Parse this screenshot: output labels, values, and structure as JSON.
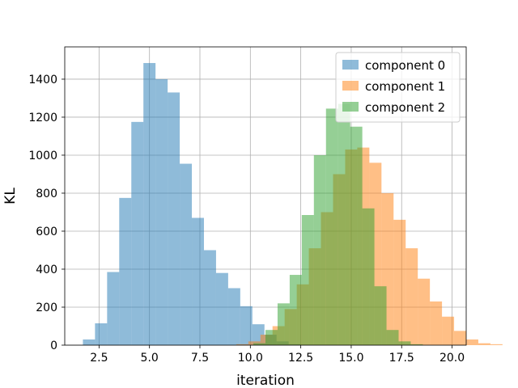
{
  "chart_data": {
    "type": "histogram",
    "title": "",
    "xlabel": "iteration",
    "ylabel": "KL",
    "xlim": [
      0.8,
      20.7
    ],
    "ylim": [
      0,
      1570
    ],
    "xticks": [
      2.5,
      5.0,
      7.5,
      10.0,
      12.5,
      15.0,
      17.5,
      20.0
    ],
    "xtick_labels": [
      "2.5",
      "5.0",
      "7.5",
      "10.0",
      "12.5",
      "15.0",
      "17.5",
      "20.0"
    ],
    "yticks": [
      0,
      200,
      400,
      600,
      800,
      1000,
      1200,
      1400
    ],
    "ytick_labels": [
      "0",
      "200",
      "400",
      "600",
      "800",
      "1000",
      "1200",
      "1400"
    ],
    "grid": true,
    "legend_position": "top-right",
    "bin_width": 0.6,
    "series": [
      {
        "name": "component 0",
        "color": "#1f77b4",
        "bin_start": 1.7,
        "counts": [
          30,
          115,
          385,
          775,
          1175,
          1485,
          1400,
          1330,
          955,
          670,
          500,
          380,
          300,
          205,
          110,
          55,
          20,
          5
        ]
      },
      {
        "name": "component 1",
        "color": "#ff7f0e",
        "bin_start": 9.3,
        "counts": [
          5,
          20,
          55,
          100,
          190,
          320,
          510,
          700,
          900,
          1030,
          1040,
          960,
          800,
          660,
          510,
          350,
          230,
          150,
          75,
          30,
          10,
          5
        ]
      },
      {
        "name": "component 2",
        "color": "#2ca02c",
        "bin_start": 10.15,
        "counts": [
          10,
          80,
          220,
          370,
          685,
          1000,
          1245,
          1270,
          1150,
          720,
          310,
          80,
          20,
          5
        ]
      }
    ]
  }
}
